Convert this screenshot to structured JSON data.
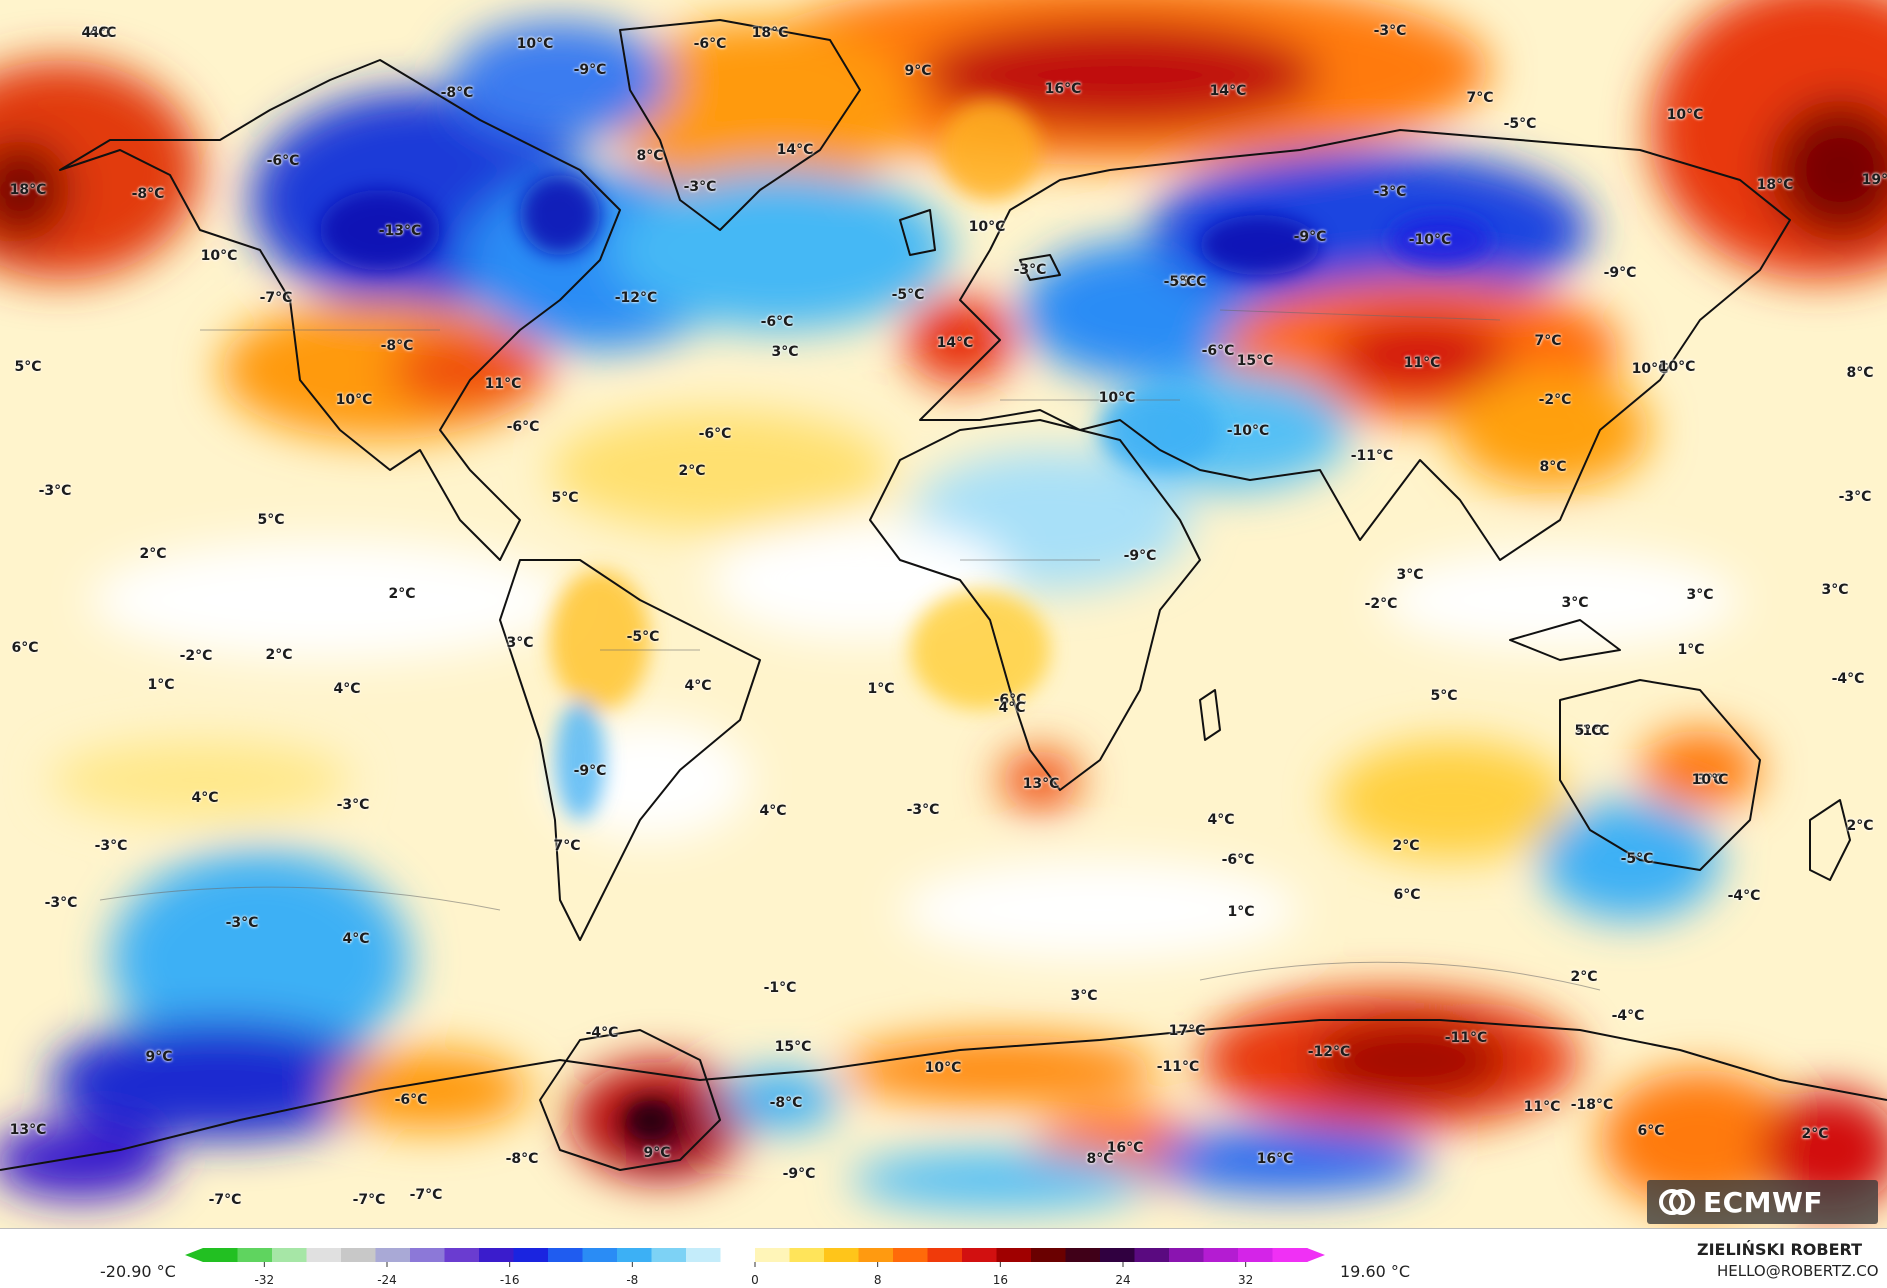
{
  "map": {
    "labels": [
      "-4°C",
      "10°C",
      "-9°C",
      "-6°C",
      "18°C",
      "9°C",
      "16°C",
      "14°C",
      "-3°C",
      "4°C",
      "18°C",
      "-8°C",
      "-6°C",
      "8°C",
      "14°C",
      "-3°C",
      "-3°C",
      "7°C",
      "-5°C",
      "10°C",
      "18°C",
      "-8°C",
      "10°C",
      "-13°C",
      "-7°C",
      "-12°C",
      "-8°C",
      "-6°C",
      "10°C",
      "-3°C",
      "-9°C",
      "-10°C",
      "-5°C",
      "19°C",
      "-9°C",
      "-5°C",
      "14°C",
      "3°C",
      "5°C",
      "10°C",
      "11°C",
      "-6°C",
      "-5°C",
      "10°C",
      "-6°C",
      "-3°C",
      "5°C",
      "2°C",
      "5°C",
      "2°C",
      "2°C",
      "15°C",
      "11°C",
      "7°C",
      "-2°C",
      "10°C",
      "8°C",
      "10°C",
      "-10°C",
      "-11°C",
      "8°C",
      "-3°C",
      "-6°C",
      "-9°C",
      "3°C",
      "-2°C",
      "3°C",
      "3°C",
      "3°C",
      "-2°C",
      "2°C",
      "1°C",
      "-5°C",
      "3°C",
      "4°C",
      "1°C",
      "-6°C",
      "4°C",
      "5°C",
      "1°C",
      "-4°C",
      "6°C",
      "-1°C",
      "3°C",
      "4°C",
      "5°C",
      "-9°C",
      "-3°C",
      "4°C",
      "13°C",
      "10°C",
      "-3°C",
      "7°C",
      "-3°C",
      "2°C",
      "2°C",
      "4°C",
      "-6°C",
      "6°C",
      "4°C",
      "-5°C",
      "-4°C",
      "-3°C",
      "-3°C",
      "4°C",
      "1°C",
      "-1°C",
      "3°C",
      "2°C",
      "-4°C",
      "9°C",
      "-4°C",
      "15°C",
      "17°C",
      "-11°C",
      "-12°C",
      "10°C",
      "-11°C",
      "-6°C",
      "-8°C",
      "11°C",
      "-18°C",
      "13°C",
      "16°C",
      "-8°C",
      "9°C",
      "-9°C",
      "8°C",
      "16°C",
      "6°C",
      "2°C",
      "-7°C",
      "-7°C",
      "-7°C"
    ],
    "logo_text": "ECMWF"
  },
  "colorbar": {
    "min_label": "-20.90 °C",
    "max_label": "19.60 °C",
    "ticks": [
      "-32",
      "-24",
      "-16",
      "-8",
      "0",
      "8",
      "16",
      "24",
      "32"
    ],
    "colors": [
      "#22c022",
      "#5fd45f",
      "#a6e6a6",
      "#e0e0e0",
      "#c8c8c8",
      "#a9a9d6",
      "#8c78d8",
      "#6a3cd0",
      "#3a1ccc",
      "#1a24e0",
      "#1f5cf0",
      "#2a8cf5",
      "#3cb0f5",
      "#7dd2f5",
      "#c4ecfa",
      "#ffffff",
      "#fff5b8",
      "#ffe45a",
      "#ffc51a",
      "#ff9a10",
      "#ff6a0a",
      "#f03a0a",
      "#d21010",
      "#a00000",
      "#6a0000",
      "#400018",
      "#300040",
      "#5a0a80",
      "#8a14b0",
      "#b41cd2",
      "#d424e8",
      "#f030f5"
    ]
  },
  "author": {
    "name": "ZIELIŃSKI ROBERT",
    "email": "HELLO@ROBERTZ.CO"
  }
}
